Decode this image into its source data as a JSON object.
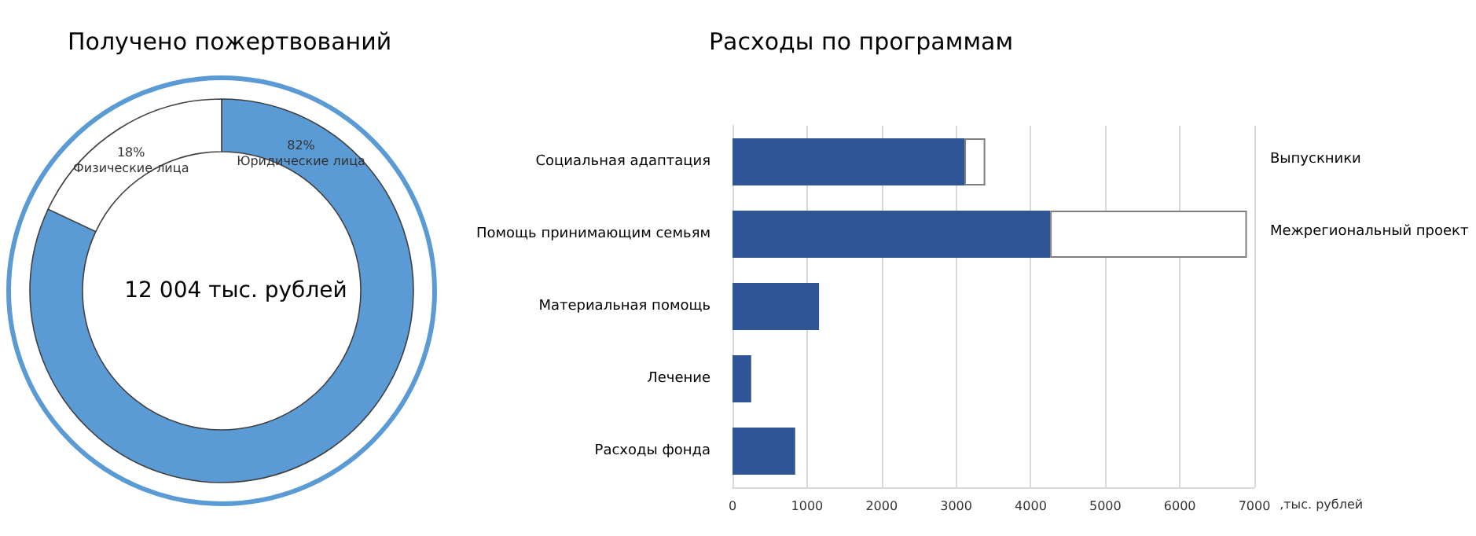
{
  "chart_data": [
    {
      "type": "donut",
      "title": "Получено пожертвований",
      "categories": [
        "Юридические лица",
        "Физические лица"
      ],
      "values": [
        82,
        18
      ],
      "colors": [
        "#5b9bd5",
        "#ffffff"
      ],
      "value_labels": [
        "82%",
        "18%"
      ],
      "annotations": [
        "12 004 тыс. рублей"
      ]
    },
    {
      "type": "bar",
      "title": "Расходы по программам",
      "orientation": "horizontal",
      "stacked": true,
      "categories": [
        "Социальная адаптация",
        "Помощь принимающим семьям",
        "Материальная помощь",
        "Лечение",
        "Расходы фонда"
      ],
      "series": [
        {
          "color": "#2f5597",
          "values": [
            3110,
            4260,
            1160,
            250,
            840
          ]
        },
        {
          "color": "#ffffff",
          "values": [
            280,
            2640,
            null,
            null,
            null
          ]
        }
      ],
      "xlabel": ",тыс. рублей",
      "xlim": [
        0,
        7000
      ],
      "xticks": [
        0,
        1000,
        2000,
        3000,
        4000,
        5000,
        6000,
        7000
      ],
      "grid": "x",
      "annotations": [
        "Выпускники",
        "Межрегиональный проект"
      ]
    }
  ]
}
